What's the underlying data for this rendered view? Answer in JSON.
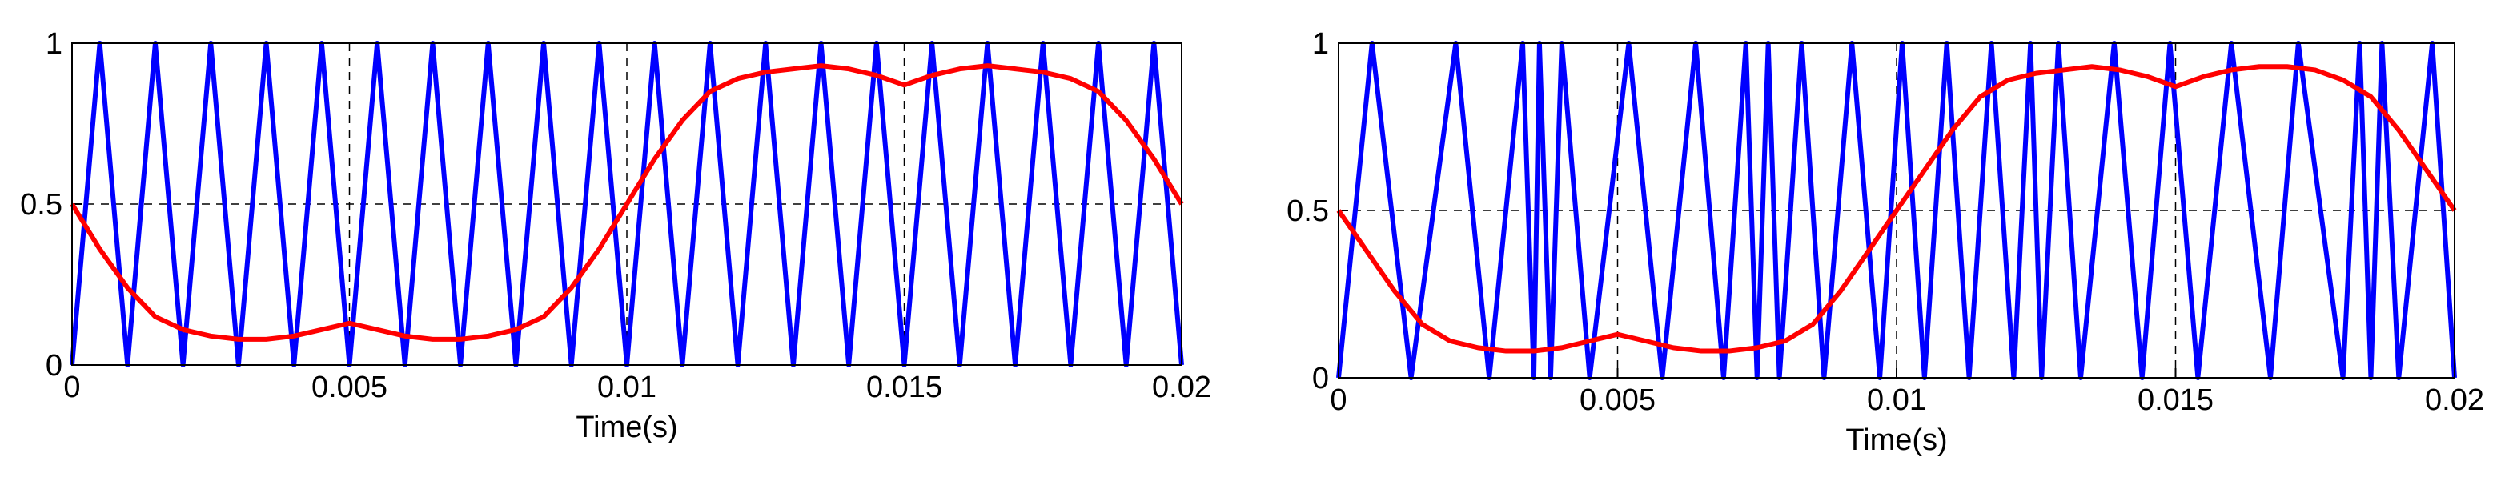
{
  "chart_data": [
    {
      "type": "line",
      "xlabel": "Time(s)",
      "xlim": [
        0,
        0.02
      ],
      "xticks": [
        0,
        0.005,
        0.01,
        0.015,
        0.02
      ],
      "ylim": [
        0,
        1
      ],
      "yticks": [
        0,
        0.5,
        1
      ],
      "grid": true,
      "series": [
        {
          "color": "#0000ff",
          "x": [
            0,
            0.0005,
            0.001,
            0.0015,
            0.002,
            0.0025,
            0.003,
            0.0035,
            0.004,
            0.0045,
            0.005,
            0.0055,
            0.006,
            0.0065,
            0.007,
            0.0075,
            0.008,
            0.0085,
            0.009,
            0.0095,
            0.01,
            0.0105,
            0.011,
            0.0115,
            0.012,
            0.0125,
            0.013,
            0.0135,
            0.014,
            0.0145,
            0.015,
            0.0155,
            0.016,
            0.0165,
            0.017,
            0.0175,
            0.018,
            0.0185,
            0.019,
            0.0195,
            0.02
          ],
          "values": [
            0,
            1,
            0,
            1,
            0,
            1,
            0,
            1,
            0,
            1,
            0,
            1,
            0,
            1,
            0,
            1,
            0,
            1,
            0,
            1,
            0,
            1,
            0,
            1,
            0,
            1,
            0,
            1,
            0,
            1,
            0,
            1,
            0,
            1,
            0,
            1,
            0,
            1,
            0,
            1,
            0
          ]
        },
        {
          "color": "#ff0000",
          "x": [
            0,
            0.0005,
            0.001,
            0.0015,
            0.002,
            0.0025,
            0.003,
            0.0035,
            0.004,
            0.0045,
            0.005,
            0.0055,
            0.006,
            0.0065,
            0.007,
            0.0075,
            0.008,
            0.0085,
            0.009,
            0.0095,
            0.01,
            0.0105,
            0.011,
            0.0115,
            0.012,
            0.0125,
            0.013,
            0.0135,
            0.014,
            0.0145,
            0.015,
            0.0155,
            0.016,
            0.0165,
            0.017,
            0.0175,
            0.018,
            0.0185,
            0.019,
            0.0195,
            0.02
          ],
          "values": [
            0.5,
            0.36,
            0.24,
            0.15,
            0.11,
            0.09,
            0.08,
            0.08,
            0.09,
            0.11,
            0.13,
            0.11,
            0.09,
            0.08,
            0.08,
            0.09,
            0.11,
            0.15,
            0.24,
            0.36,
            0.5,
            0.64,
            0.76,
            0.85,
            0.89,
            0.91,
            0.92,
            0.93,
            0.92,
            0.9,
            0.87,
            0.9,
            0.92,
            0.93,
            0.92,
            0.91,
            0.89,
            0.85,
            0.76,
            0.64,
            0.5
          ]
        }
      ]
    },
    {
      "type": "line",
      "xlabel": "Time(s)",
      "xlim": [
        0,
        0.02
      ],
      "xticks": [
        0,
        0.005,
        0.01,
        0.015,
        0.02
      ],
      "ylim": [
        0,
        1
      ],
      "yticks": [
        0,
        0.5,
        1
      ],
      "grid": true,
      "series": [
        {
          "color": "#0000ff",
          "x": [
            0,
            0.0006,
            0.0013,
            0.0021,
            0.0027,
            0.0033,
            0.0035,
            0.0036,
            0.0038,
            0.004,
            0.0045,
            0.0052,
            0.0058,
            0.0064,
            0.0069,
            0.0073,
            0.0075,
            0.0077,
            0.0079,
            0.0083,
            0.0087,
            0.0092,
            0.0097,
            0.0101,
            0.0105,
            0.0109,
            0.0113,
            0.0117,
            0.0121,
            0.0124,
            0.0126,
            0.0129,
            0.0133,
            0.0139,
            0.0144,
            0.0149,
            0.0154,
            0.016,
            0.0167,
            0.0172,
            0.018,
            0.0183,
            0.0185,
            0.0187,
            0.019,
            0.0196,
            0.02
          ],
          "values": [
            0,
            1,
            0,
            1,
            0,
            1,
            0,
            1,
            0,
            1,
            0,
            1,
            0,
            1,
            0,
            1,
            0,
            1,
            0,
            1,
            0,
            1,
            0,
            1,
            0,
            1,
            0,
            1,
            0,
            1,
            0,
            1,
            0,
            1,
            0,
            1,
            0,
            1,
            0,
            1,
            0,
            1,
            0,
            1,
            0,
            1,
            0
          ]
        },
        {
          "color": "#ff0000",
          "x": [
            0,
            0.0005,
            0.001,
            0.0015,
            0.002,
            0.0025,
            0.003,
            0.0035,
            0.004,
            0.0045,
            0.005,
            0.0055,
            0.006,
            0.0065,
            0.007,
            0.0075,
            0.008,
            0.0085,
            0.009,
            0.0095,
            0.01,
            0.0105,
            0.011,
            0.0115,
            0.012,
            0.0125,
            0.013,
            0.0135,
            0.014,
            0.0145,
            0.015,
            0.0155,
            0.016,
            0.0165,
            0.017,
            0.0175,
            0.018,
            0.0185,
            0.019,
            0.0195,
            0.02
          ],
          "values": [
            0.5,
            0.38,
            0.26,
            0.16,
            0.11,
            0.09,
            0.08,
            0.08,
            0.09,
            0.11,
            0.13,
            0.11,
            0.09,
            0.08,
            0.08,
            0.09,
            0.11,
            0.16,
            0.26,
            0.38,
            0.5,
            0.62,
            0.74,
            0.84,
            0.89,
            0.91,
            0.92,
            0.93,
            0.92,
            0.9,
            0.87,
            0.9,
            0.92,
            0.93,
            0.93,
            0.92,
            0.89,
            0.84,
            0.74,
            0.62,
            0.5
          ]
        }
      ]
    }
  ]
}
